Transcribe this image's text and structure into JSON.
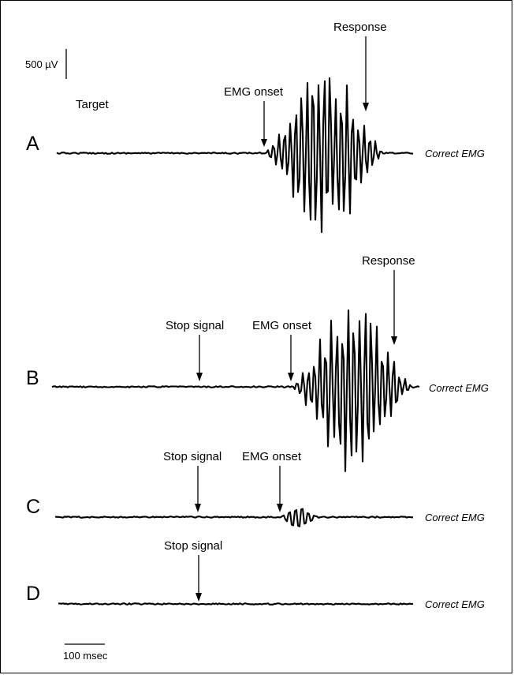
{
  "scale_bars": {
    "voltage_label": "500 µV",
    "time_label": "100 msec"
  },
  "target_label": "Target",
  "panels": [
    {
      "id": "A",
      "trace_label": "Correct EMG",
      "annotations": {
        "emg_onset": "EMG onset",
        "response": "Response"
      }
    },
    {
      "id": "B",
      "trace_label": "Correct EMG",
      "annotations": {
        "stop_signal": "Stop signal",
        "emg_onset": "EMG onset",
        "response": "Response"
      }
    },
    {
      "id": "C",
      "trace_label": "Correct EMG",
      "annotations": {
        "stop_signal": "Stop signal",
        "emg_onset": "EMG onset"
      }
    },
    {
      "id": "D",
      "trace_label": "Correct EMG",
      "annotations": {
        "stop_signal": "Stop signal"
      }
    }
  ]
}
